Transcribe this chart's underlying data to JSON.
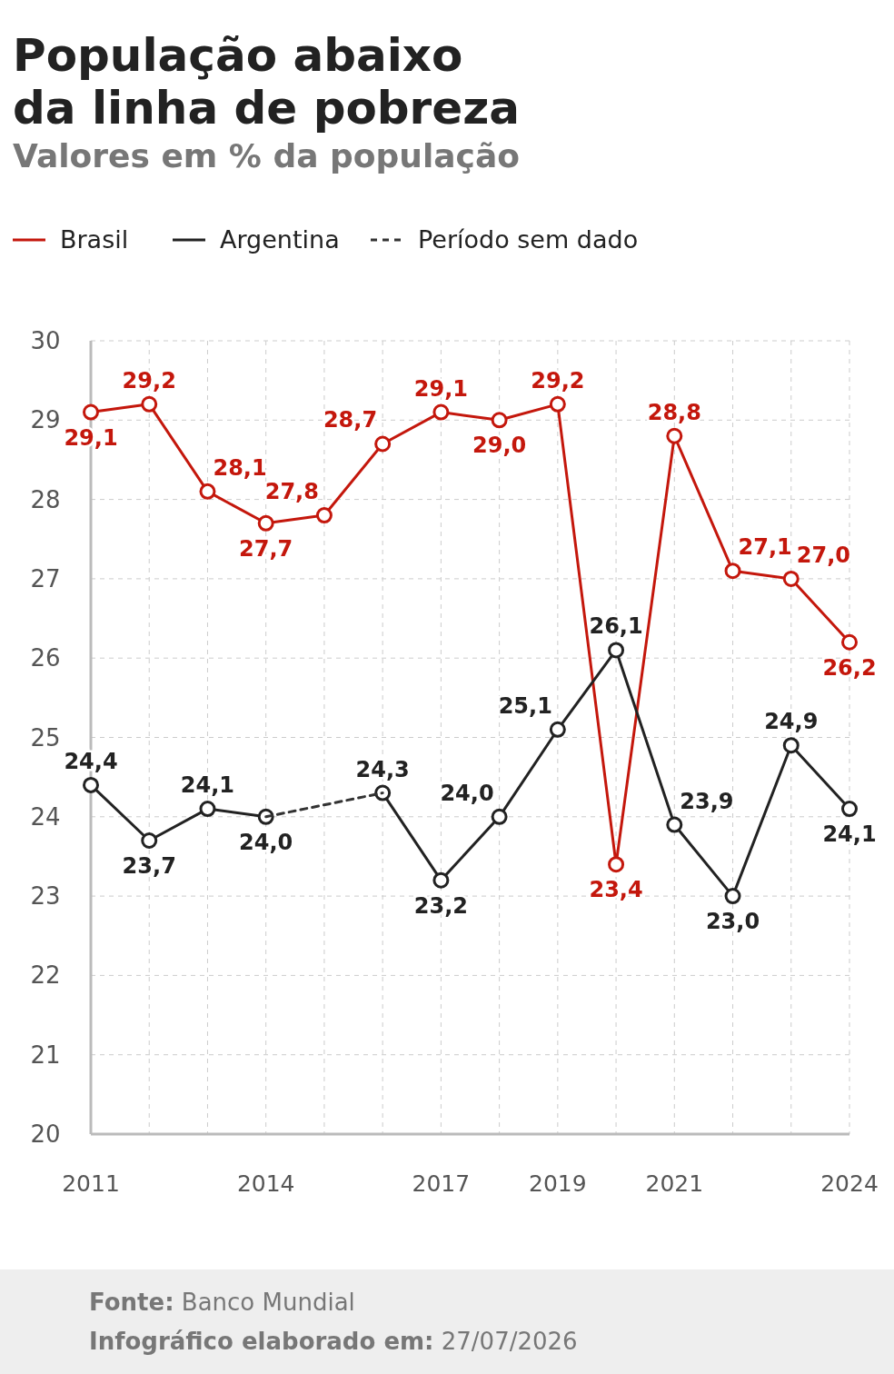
{
  "chart_data": {
    "type": "line",
    "title": "População abaixo da linha de pobreza",
    "subtitle": "Valores em % da população",
    "x": [
      2011,
      2012,
      2013,
      2014,
      2015,
      2016,
      2017,
      2018,
      2019,
      2020,
      2021,
      2022,
      2023,
      2024
    ],
    "series": [
      {
        "name": "Brasil",
        "color": "#c4170c",
        "values": [
          29.1,
          29.2,
          28.1,
          27.7,
          27.8,
          28.7,
          29.1,
          29.0,
          29.2,
          23.4,
          28.8,
          27.1,
          27.0,
          26.2
        ],
        "value_labels": [
          "29,1",
          "29,2",
          "28,1",
          "27,7",
          "27,8",
          "28,7",
          "29,1",
          "29,0",
          "29,2",
          "23,4",
          "28,8",
          "27,1",
          "27,0",
          "26,2"
        ]
      },
      {
        "name": "Argentina",
        "color": "#222222",
        "values": [
          24.4,
          23.7,
          24.1,
          24.0,
          null,
          24.3,
          23.2,
          24.0,
          25.1,
          26.1,
          23.9,
          23.0,
          24.9,
          24.1
        ],
        "value_labels": [
          "24,4",
          "23,7",
          "24,1",
          "24,0",
          null,
          "24,3",
          "23,2",
          "24,0",
          "25,1",
          "26,1",
          "23,9",
          "23,0",
          "24,9",
          "24,1"
        ]
      },
      {
        "name": "Período sem dado",
        "color": "#333333",
        "x": [
          2014,
          2016
        ],
        "values": [
          24.0,
          24.3
        ],
        "line_style": "dashed",
        "marker": "none"
      }
    ],
    "xlim": [
      2011,
      2024
    ],
    "xticks": [
      2011,
      {
        "value": 2012,
        "label": null
      },
      {
        "value": 2013,
        "label": null
      },
      2014,
      {
        "value": 2015,
        "label": null
      },
      {
        "value": 2016,
        "label": null
      },
      2017,
      {
        "value": 2018,
        "label": null
      },
      2019,
      {
        "value": 2020,
        "label": null
      },
      2021,
      {
        "value": 2022,
        "label": null
      },
      {
        "value": 2023,
        "label": null
      },
      2024
    ],
    "ylim": [
      20,
      30
    ],
    "yticks": [
      20,
      21,
      22,
      23,
      24,
      25,
      26,
      27,
      28,
      29,
      30
    ],
    "grid": true,
    "legend": "top left",
    "marker": "circle",
    "line_style": "solid",
    "annotations": [
      "Fonte: Banco Mundial",
      "Infográfico elaborado em: 27/07/2026"
    ]
  }
}
